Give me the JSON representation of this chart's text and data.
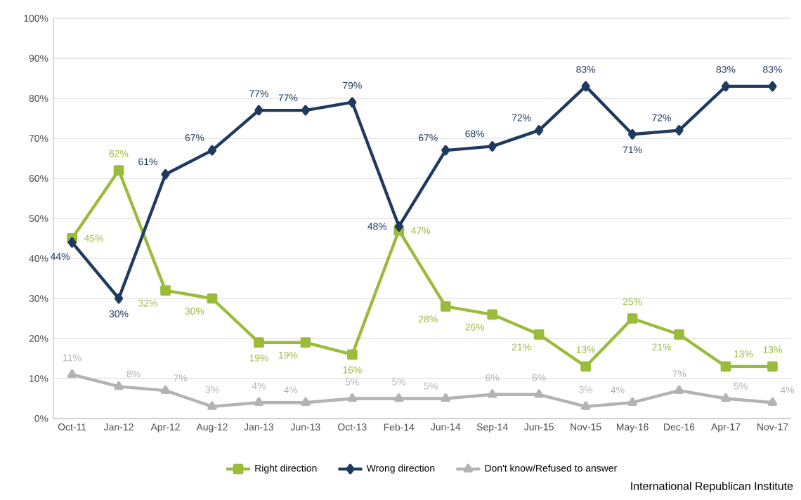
{
  "chart_data": {
    "type": "line",
    "categories": [
      "Oct-11",
      "Jan-12",
      "Apr-12",
      "Aug-12",
      "Jan-13",
      "Jun-13",
      "Oct-13",
      "Feb-14",
      "Jun-14",
      "Sep-14",
      "Jun-15",
      "Nov-15",
      "May-16",
      "Dec-16",
      "Apr-17",
      "Nov-17"
    ],
    "series": [
      {
        "name": "Right direction",
        "color": "#9bbb3b",
        "marker": "square",
        "values": [
          45,
          62,
          32,
          30,
          19,
          19,
          16,
          47,
          28,
          26,
          21,
          13,
          25,
          21,
          13,
          13
        ],
        "value_labels": [
          "45%",
          "62%",
          "32%",
          "30%",
          "19%",
          "19%",
          "16%",
          "47%",
          "28%",
          "26%",
          "21%",
          "13%",
          "25%",
          "21%",
          "13%",
          "13%"
        ]
      },
      {
        "name": "Wrong direction",
        "color": "#1f3a5f",
        "marker": "diamond",
        "values": [
          44,
          30,
          61,
          67,
          77,
          77,
          79,
          48,
          67,
          68,
          72,
          83,
          71,
          72,
          83,
          83
        ],
        "value_labels": [
          "44%",
          "30%",
          "61%",
          "67%",
          "77%",
          "77%",
          "79%",
          "48%",
          "67%",
          "68%",
          "72%",
          "83%",
          "71%",
          "72%",
          "83%",
          "83%"
        ]
      },
      {
        "name": "Don't know/Refused to answer",
        "color": "#b3b3b3",
        "marker": "triangle",
        "values": [
          11,
          8,
          7,
          3,
          4,
          4,
          5,
          5,
          5,
          6,
          6,
          3,
          4,
          7,
          5,
          4
        ],
        "value_labels": [
          "11%",
          "8%",
          "7%",
          "3%",
          "4%",
          "4%",
          "5%",
          "5%",
          "5%",
          "6%",
          "6%",
          "3%",
          "4%",
          "7%",
          "5%",
          "4%"
        ]
      }
    ],
    "ylim": [
      0,
      100
    ],
    "yticks": [
      {
        "value": 0,
        "label": "0%"
      },
      {
        "value": 10,
        "label": "10%"
      },
      {
        "value": 20,
        "label": "20%"
      },
      {
        "value": 30,
        "label": "30%"
      },
      {
        "value": 40,
        "label": "40%"
      },
      {
        "value": 50,
        "label": "50%"
      },
      {
        "value": 60,
        "label": "60%"
      },
      {
        "value": 70,
        "label": "70%"
      },
      {
        "value": 80,
        "label": "80%"
      },
      {
        "value": 90,
        "label": "90%"
      },
      {
        "value": 100,
        "label": "100%"
      }
    ],
    "grid": "y",
    "legend": "bottom",
    "line_style": "solid",
    "annotations": [
      "International Republican Institute"
    ]
  }
}
